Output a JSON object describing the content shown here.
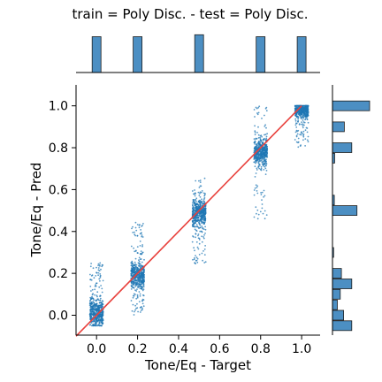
{
  "chart_data": {
    "type": "scatter",
    "title": "train = Poly Disc. - test = Poly Disc.",
    "xlabel": "Tone/Eq - Target",
    "ylabel": "Tone/Eq - Pred",
    "xlim": [
      -0.1,
      1.09
    ],
    "ylim": [
      -0.095,
      1.1
    ],
    "xticks": [
      "0.0",
      "0.2",
      "0.4",
      "0.6",
      "0.8",
      "1.0"
    ],
    "yticks": [
      "0.0",
      "0.2",
      "0.4",
      "0.6",
      "0.8",
      "1.0"
    ],
    "grid": false,
    "colors": {
      "points": "#1f77b4",
      "identity_line": "#e8413c",
      "hist_fill": "#4c8fc3"
    },
    "identity_line": {
      "from": [
        -0.1,
        -0.1
      ],
      "to": [
        1.0,
        1.0
      ]
    },
    "clusters": [
      {
        "x": 0.0,
        "y_center": 0.01,
        "y_spread": 0.06,
        "y_min": -0.05,
        "y_max": 0.25
      },
      {
        "x": 0.2,
        "y_center": 0.19,
        "y_spread": 0.06,
        "y_min": 0.0,
        "y_max": 0.46
      },
      {
        "x": 0.5,
        "y_center": 0.49,
        "y_spread": 0.06,
        "y_min": 0.24,
        "y_max": 0.66
      },
      {
        "x": 0.8,
        "y_center": 0.78,
        "y_spread": 0.06,
        "y_min": 0.46,
        "y_max": 1.0
      },
      {
        "x": 1.0,
        "y_center": 0.98,
        "y_spread": 0.03,
        "y_min": 0.8,
        "y_max": 1.0
      }
    ],
    "top_histogram": {
      "bins": [
        0.0,
        0.2,
        0.5,
        0.8,
        1.0
      ],
      "heights": [
        0.92,
        0.92,
        0.97,
        0.92,
        0.92
      ]
    },
    "right_histogram": {
      "bins": [
        1.0,
        0.9,
        0.8,
        0.75,
        0.55,
        0.5,
        0.3,
        0.2,
        0.15,
        0.1,
        0.05,
        0.0,
        -0.05
      ],
      "heights": [
        1.0,
        0.32,
        0.52,
        0.06,
        0.05,
        0.66,
        0.03,
        0.24,
        0.52,
        0.21,
        0.13,
        0.3,
        0.52
      ]
    }
  }
}
